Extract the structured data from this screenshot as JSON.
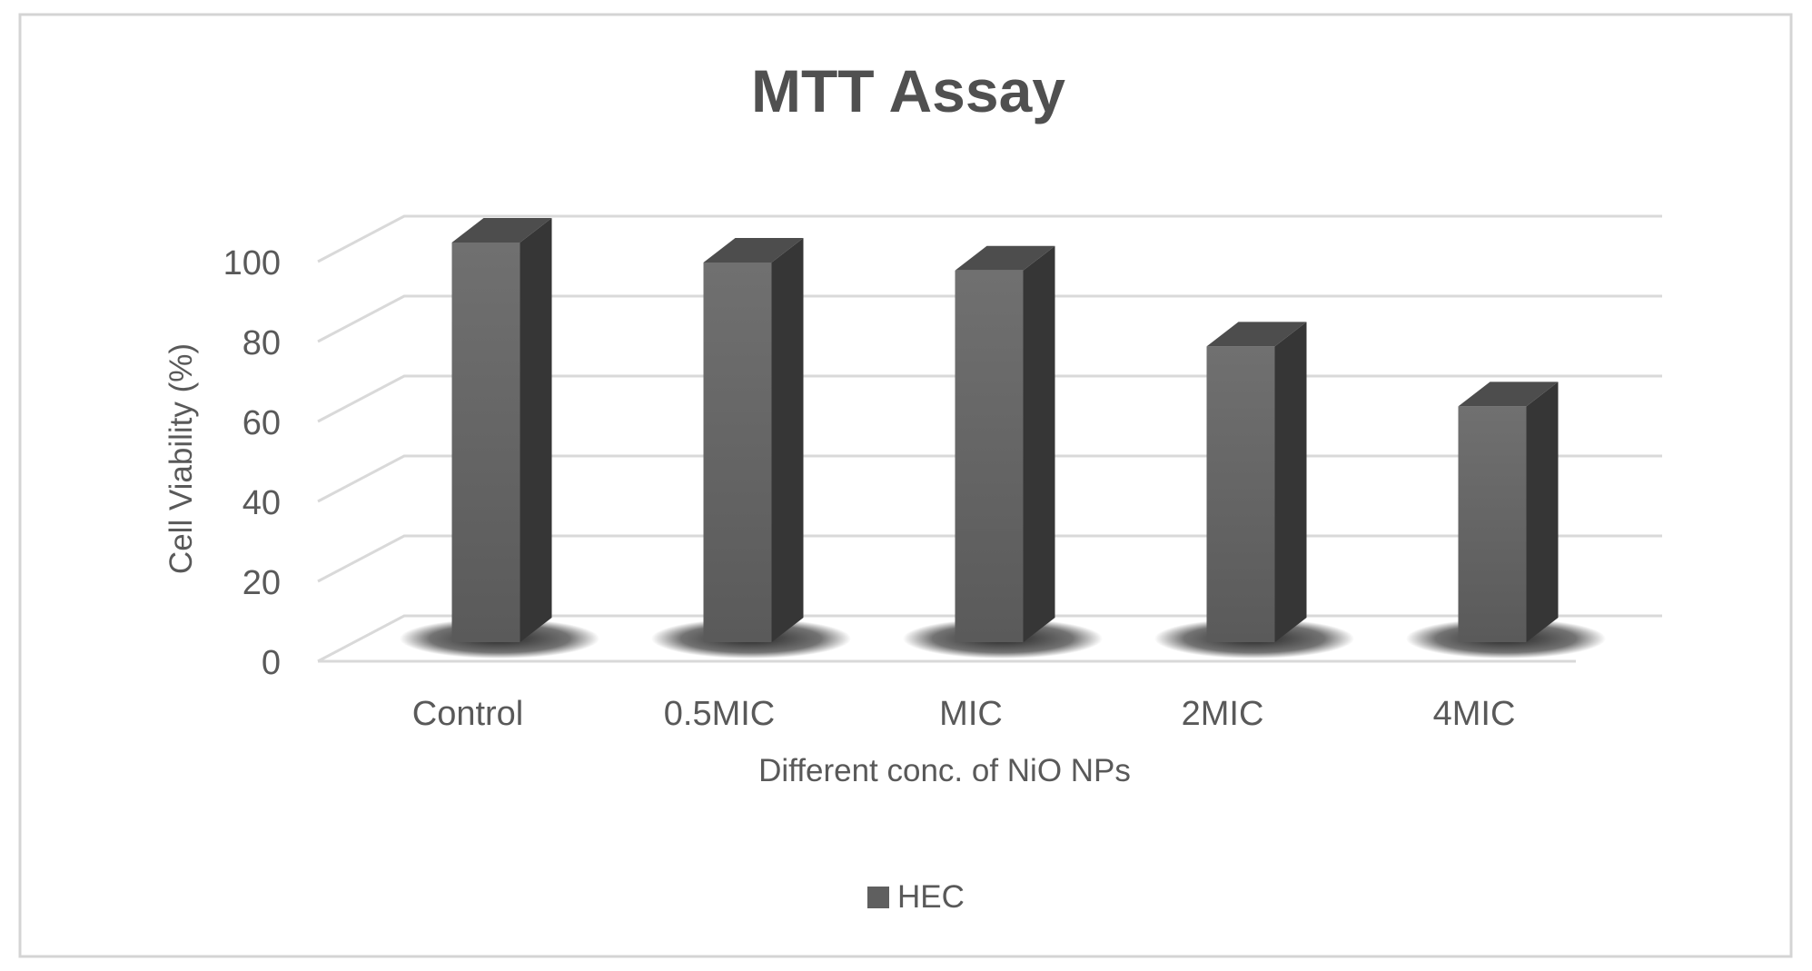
{
  "chart_data": {
    "type": "bar",
    "title": "MTT Assay",
    "xlabel": "Different conc. of NiO NPs",
    "ylabel": "Cell Viability (%)",
    "categories": [
      "Control",
      "0.5MIC",
      "MIC",
      "2MIC",
      "4MIC"
    ],
    "series": [
      {
        "name": "HEC",
        "values": [
          100,
          95,
          93,
          74,
          59
        ]
      }
    ],
    "ylim": [
      0,
      100
    ],
    "yticks": [
      "0",
      "20",
      "40",
      "60",
      "80",
      "100"
    ],
    "grid": true,
    "legend_position": "bottom",
    "style": "3d-column",
    "colors": {
      "front": "#6a6a6a",
      "top": "#4d4d4d",
      "side": "#363636",
      "grid": "#d9d9d9",
      "text": "#595959",
      "title": "#505050"
    }
  }
}
